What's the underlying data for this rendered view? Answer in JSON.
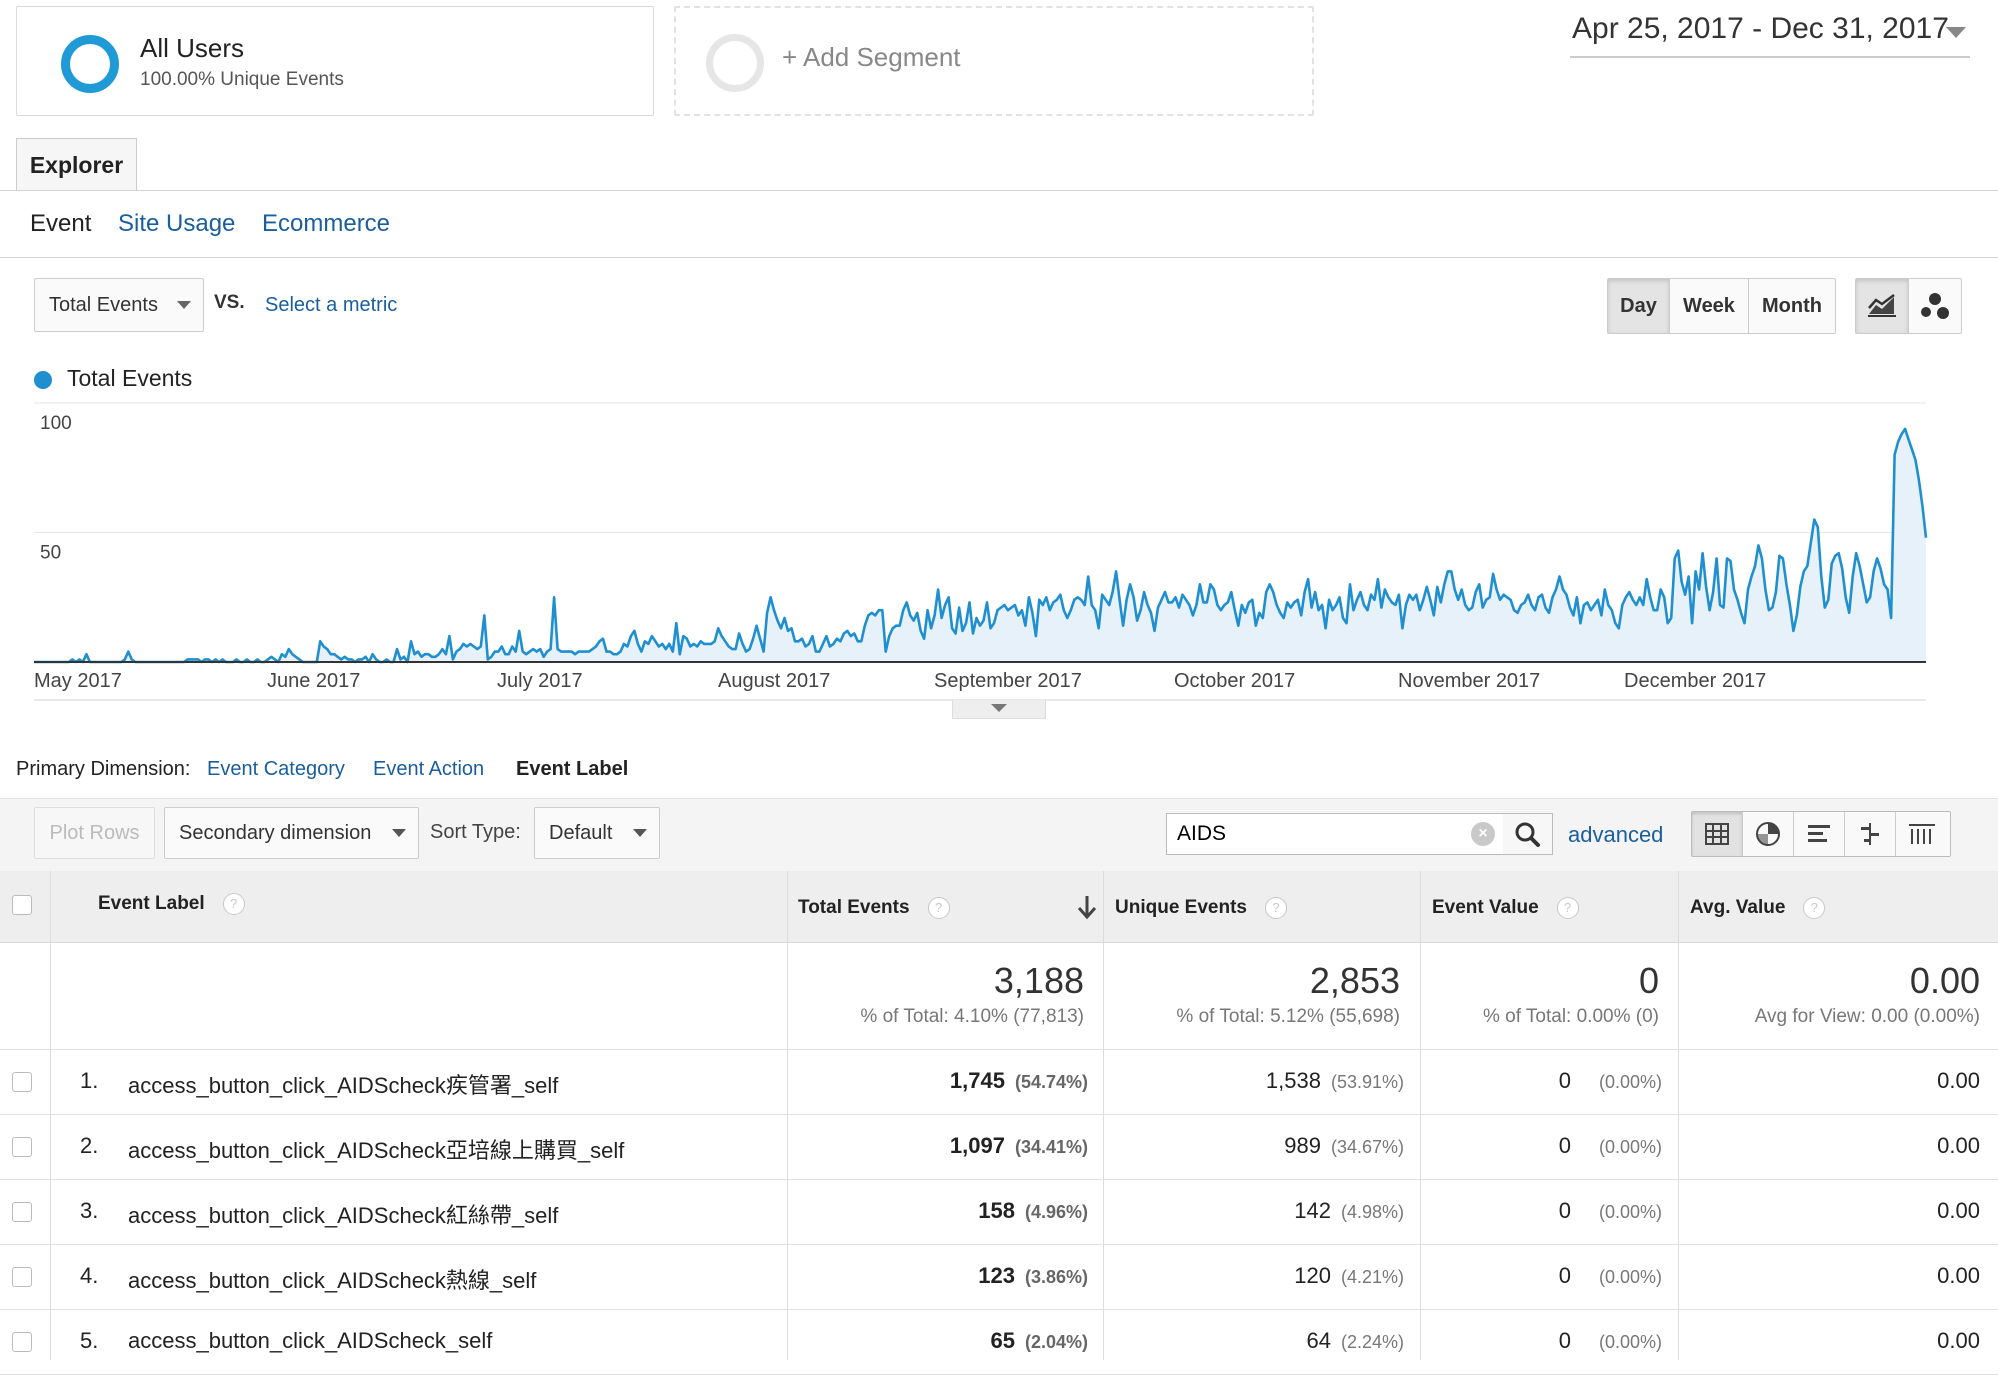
{
  "segments": {
    "primary": {
      "title": "All Users",
      "subtitle": "100.00% Unique Events"
    },
    "add_label": "+ Add Segment"
  },
  "date_range": "Apr 25, 2017 - Dec 31, 2017",
  "tabs": {
    "explorer": "Explorer"
  },
  "subtabs": [
    "Event",
    "Site Usage",
    "Ecommerce"
  ],
  "metric_selector": {
    "primary": "Total Events",
    "vs": "VS.",
    "select_metric": "Select a metric"
  },
  "granularity": {
    "options": [
      "Day",
      "Week",
      "Month"
    ],
    "selected": "Day"
  },
  "chart_icons": [
    "line-chart-icon",
    "motion-chart-icon"
  ],
  "chart_data": {
    "type": "area",
    "series": [
      {
        "name": "Total Events",
        "color": "#1f8fd0",
        "values": [
          0,
          0,
          0,
          0,
          0,
          0,
          0,
          0,
          0,
          0,
          0,
          1,
          0,
          1,
          0,
          3,
          0,
          0,
          0,
          0,
          0,
          0,
          0,
          0,
          0,
          0,
          1,
          4,
          1,
          0,
          0,
          0,
          0,
          0,
          0,
          0,
          0,
          0,
          0,
          0,
          0,
          0,
          0,
          0,
          1,
          1,
          1,
          1,
          0,
          1,
          1,
          0,
          1,
          0,
          1,
          0,
          0,
          0,
          1,
          0,
          0,
          1,
          0,
          0,
          1,
          0,
          0,
          1,
          2,
          1,
          0,
          3,
          2,
          5,
          3,
          2,
          1,
          0,
          0,
          0,
          0,
          0,
          8,
          6,
          5,
          3,
          3,
          2,
          1,
          2,
          1,
          1,
          0,
          1,
          1,
          2,
          0,
          3,
          1,
          0,
          0,
          1,
          0,
          0,
          5,
          1,
          2,
          0,
          8,
          3,
          4,
          2,
          3,
          3,
          2,
          2,
          3,
          5,
          3,
          10,
          1,
          4,
          5,
          7,
          6,
          7,
          6,
          5,
          6,
          18,
          1,
          2,
          4,
          4,
          6,
          3,
          3,
          6,
          4,
          12,
          4,
          3,
          4,
          5,
          4,
          5,
          2,
          4,
          5,
          25,
          5,
          4,
          4,
          4,
          4,
          3,
          4,
          4,
          4,
          4,
          5,
          6,
          8,
          9,
          4,
          4,
          3,
          3,
          4,
          7,
          6,
          10,
          12,
          7,
          4,
          8,
          7,
          10,
          8,
          6,
          7,
          5,
          7,
          4,
          15,
          3,
          10,
          9,
          6,
          7,
          6,
          8,
          7,
          7,
          7,
          8,
          13,
          10,
          8,
          6,
          5,
          5,
          11,
          7,
          4,
          5,
          9,
          14,
          9,
          4,
          19,
          25,
          20,
          16,
          13,
          17,
          12,
          13,
          8,
          8,
          9,
          6,
          7,
          10,
          4,
          4,
          7,
          10,
          6,
          7,
          9,
          8,
          11,
          12,
          10,
          11,
          8,
          8,
          14,
          18,
          19,
          18,
          20,
          20,
          4,
          10,
          13,
          14,
          14,
          20,
          23,
          18,
          16,
          19,
          12,
          9,
          20,
          13,
          18,
          28,
          17,
          22,
          25,
          13,
          11,
          21,
          12,
          15,
          23,
          11,
          17,
          14,
          16,
          23,
          13,
          15,
          20,
          21,
          22,
          20,
          21,
          22,
          18,
          20,
          14,
          25,
          19,
          10,
          24,
          22,
          25,
          20,
          23,
          24,
          26,
          20,
          17,
          20,
          24,
          25,
          24,
          22,
          33,
          22,
          20,
          13,
          26,
          24,
          22,
          27,
          35,
          24,
          14,
          24,
          30,
          25,
          16,
          20,
          27,
          22,
          19,
          12,
          21,
          24,
          27,
          23,
          23,
          25,
          21,
          26,
          24,
          22,
          18,
          22,
          30,
          23,
          23,
          30,
          28,
          22,
          20,
          22,
          23,
          27,
          20,
          14,
          22,
          19,
          23,
          24,
          14,
          19,
          17,
          27,
          30,
          27,
          22,
          19,
          17,
          23,
          21,
          23,
          24,
          18,
          27,
          32,
          21,
          27,
          20,
          22,
          13,
          24,
          20,
          22,
          25,
          17,
          15,
          30,
          20,
          24,
          27,
          22,
          20,
          26,
          24,
          32,
          21,
          28,
          25,
          23,
          22,
          26,
          13,
          22,
          26,
          24,
          26,
          20,
          24,
          29,
          24,
          18,
          29,
          23,
          30,
          35,
          35,
          28,
          24,
          28,
          22,
          20,
          21,
          27,
          30,
          21,
          24,
          25,
          34,
          28,
          24,
          26,
          25,
          24,
          20,
          19,
          22,
          23,
          26,
          22,
          20,
          25,
          26,
          21,
          19,
          25,
          28,
          33,
          28,
          26,
          21,
          18,
          25,
          15,
          22,
          23,
          20,
          22,
          24,
          18,
          28,
          22,
          20,
          15,
          13,
          22,
          25,
          27,
          24,
          22,
          25,
          22,
          32,
          25,
          20,
          20,
          28,
          25,
          15,
          17,
          40,
          43,
          31,
          26,
          33,
          15,
          35,
          28,
          42,
          29,
          20,
          27,
          40,
          22,
          21,
          40,
          39,
          28,
          24,
          19,
          15,
          28,
          33,
          37,
          45,
          40,
          28,
          20,
          21,
          27,
          41,
          40,
          30,
          22,
          12,
          18,
          29,
          35,
          37,
          46,
          55,
          52,
          33,
          21,
          24,
          38,
          41,
          42,
          36,
          25,
          19,
          33,
          42,
          37,
          30,
          23,
          25,
          35,
          40,
          36,
          30,
          28,
          17,
          80,
          85,
          88,
          90,
          86,
          82,
          78,
          70,
          60,
          48
        ]
      }
    ],
    "x_labels": [
      "May 2017",
      "June 2017",
      "July 2017",
      "August 2017",
      "September 2017",
      "October 2017",
      "November 2017",
      "December 2017"
    ],
    "y_ticks": [
      50,
      100
    ],
    "ylim": [
      0,
      100
    ]
  },
  "primary_dimension": {
    "label": "Primary Dimension:",
    "options": [
      "Event Category",
      "Event Action",
      "Event Label"
    ],
    "selected": "Event Label"
  },
  "toolbar": {
    "plot_rows": "Plot Rows",
    "secondary_dimension": "Secondary dimension",
    "sort_type_label": "Sort Type:",
    "sort_type_value": "Default",
    "search_value": "AIDS",
    "advanced": "advanced"
  },
  "table": {
    "columns": [
      "Event Label",
      "Total Events",
      "Unique Events",
      "Event Value",
      "Avg. Value"
    ],
    "totals": {
      "total_events": "3,188",
      "total_events_sub": "% of Total: 4.10% (77,813)",
      "unique_events": "2,853",
      "unique_events_sub": "% of Total: 5.12% (55,698)",
      "event_value": "0",
      "event_value_sub": "% of Total: 0.00% (0)",
      "avg_value": "0.00",
      "avg_value_sub": "Avg for View: 0.00 (0.00%)"
    },
    "rows": [
      {
        "index": "1.",
        "label": "access_button_click_AIDScheck疾管署_self",
        "total": "1,745",
        "total_pct": "(54.74%)",
        "unique": "1,538",
        "unique_pct": "(53.91%)",
        "value": "0",
        "value_pct": "(0.00%)",
        "avg": "0.00"
      },
      {
        "index": "2.",
        "label": "access_button_click_AIDScheck亞培線上購買_self",
        "total": "1,097",
        "total_pct": "(34.41%)",
        "unique": "989",
        "unique_pct": "(34.67%)",
        "value": "0",
        "value_pct": "(0.00%)",
        "avg": "0.00"
      },
      {
        "index": "3.",
        "label": "access_button_click_AIDScheck紅絲帶_self",
        "total": "158",
        "total_pct": "(4.96%)",
        "unique": "142",
        "unique_pct": "(4.98%)",
        "value": "0",
        "value_pct": "(0.00%)",
        "avg": "0.00"
      },
      {
        "index": "4.",
        "label": "access_button_click_AIDScheck熱線_self",
        "total": "123",
        "total_pct": "(3.86%)",
        "unique": "120",
        "unique_pct": "(4.21%)",
        "value": "0",
        "value_pct": "(0.00%)",
        "avg": "0.00"
      },
      {
        "index": "5.",
        "label": "access_button_click_AIDScheck_self",
        "total": "65",
        "total_pct": "(2.04%)",
        "unique": "64",
        "unique_pct": "(2.24%)",
        "value": "0",
        "value_pct": "(0.00%)",
        "avg": "0.00"
      }
    ]
  }
}
